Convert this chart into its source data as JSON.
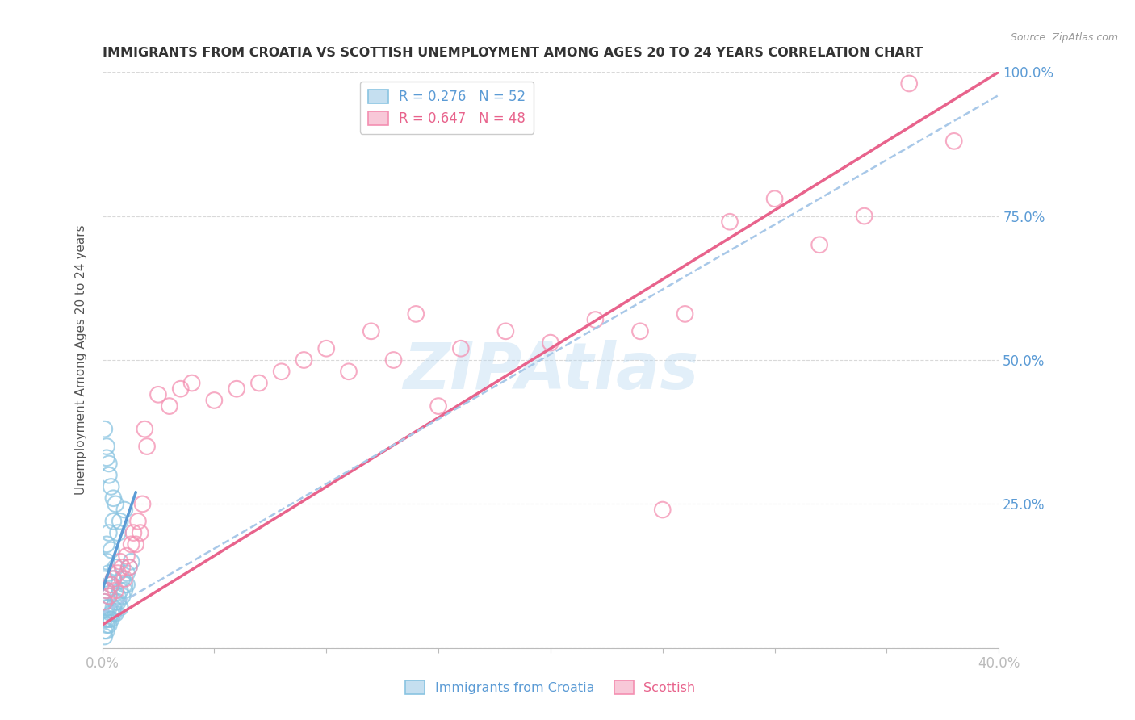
{
  "title": "IMMIGRANTS FROM CROATIA VS SCOTTISH UNEMPLOYMENT AMONG AGES 20 TO 24 YEARS CORRELATION CHART",
  "source": "Source: ZipAtlas.com",
  "ylabel": "Unemployment Among Ages 20 to 24 years",
  "xlim": [
    0.0,
    0.4
  ],
  "ylim": [
    0.0,
    1.0
  ],
  "watermark": "ZIPAtlas",
  "legend1_label": "R = 0.276   N = 52",
  "legend2_label": "R = 0.647   N = 48",
  "blue_color": "#89c4e1",
  "pink_color": "#f48fb1",
  "blue_line_color": "#5b9bd5",
  "pink_line_color": "#e8638c",
  "dash_line_color": "#a8c8e8",
  "grid_color": "#d0d0d0",
  "blue_scatter_x": [
    0.001,
    0.001,
    0.001,
    0.002,
    0.002,
    0.002,
    0.002,
    0.002,
    0.003,
    0.003,
    0.003,
    0.003,
    0.004,
    0.004,
    0.004,
    0.005,
    0.005,
    0.005,
    0.006,
    0.006,
    0.007,
    0.007,
    0.008,
    0.008,
    0.009,
    0.01,
    0.01,
    0.011,
    0.012,
    0.013,
    0.001,
    0.001,
    0.002,
    0.002,
    0.003,
    0.003,
    0.004,
    0.005,
    0.006,
    0.007,
    0.008,
    0.009,
    0.01,
    0.011,
    0.001,
    0.002,
    0.003,
    0.004,
    0.005,
    0.006,
    0.002,
    0.003
  ],
  "blue_scatter_y": [
    0.05,
    0.08,
    0.12,
    0.04,
    0.07,
    0.1,
    0.15,
    0.18,
    0.05,
    0.09,
    0.13,
    0.2,
    0.06,
    0.11,
    0.17,
    0.07,
    0.12,
    0.22,
    0.08,
    0.14,
    0.09,
    0.2,
    0.1,
    0.22,
    0.12,
    0.11,
    0.24,
    0.13,
    0.14,
    0.15,
    0.02,
    0.03,
    0.03,
    0.05,
    0.04,
    0.07,
    0.05,
    0.06,
    0.06,
    0.08,
    0.07,
    0.09,
    0.1,
    0.11,
    0.38,
    0.35,
    0.3,
    0.28,
    0.26,
    0.25,
    0.33,
    0.32
  ],
  "pink_scatter_x": [
    0.001,
    0.002,
    0.003,
    0.004,
    0.005,
    0.006,
    0.007,
    0.008,
    0.009,
    0.01,
    0.011,
    0.012,
    0.013,
    0.014,
    0.015,
    0.016,
    0.017,
    0.018,
    0.019,
    0.02,
    0.025,
    0.03,
    0.035,
    0.04,
    0.05,
    0.06,
    0.07,
    0.08,
    0.09,
    0.1,
    0.11,
    0.12,
    0.13,
    0.14,
    0.16,
    0.18,
    0.2,
    0.22,
    0.24,
    0.26,
    0.28,
    0.3,
    0.32,
    0.34,
    0.36,
    0.38,
    0.15,
    0.25
  ],
  "pink_scatter_y": [
    0.08,
    0.1,
    0.09,
    0.11,
    0.12,
    0.1,
    0.13,
    0.15,
    0.14,
    0.12,
    0.16,
    0.14,
    0.18,
    0.2,
    0.18,
    0.22,
    0.2,
    0.25,
    0.38,
    0.35,
    0.44,
    0.42,
    0.45,
    0.46,
    0.43,
    0.45,
    0.46,
    0.48,
    0.5,
    0.52,
    0.48,
    0.55,
    0.5,
    0.58,
    0.52,
    0.55,
    0.53,
    0.57,
    0.55,
    0.58,
    0.74,
    0.78,
    0.7,
    0.75,
    0.98,
    0.88,
    0.42,
    0.24
  ],
  "blue_line_x": [
    0.0,
    0.015
  ],
  "blue_line_y": [
    0.1,
    0.27
  ],
  "pink_line_x": [
    0.0,
    0.4
  ],
  "pink_line_y": [
    0.04,
    1.0
  ],
  "dashed_line_x": [
    0.0,
    0.4
  ],
  "dashed_line_y": [
    0.06,
    0.96
  ]
}
